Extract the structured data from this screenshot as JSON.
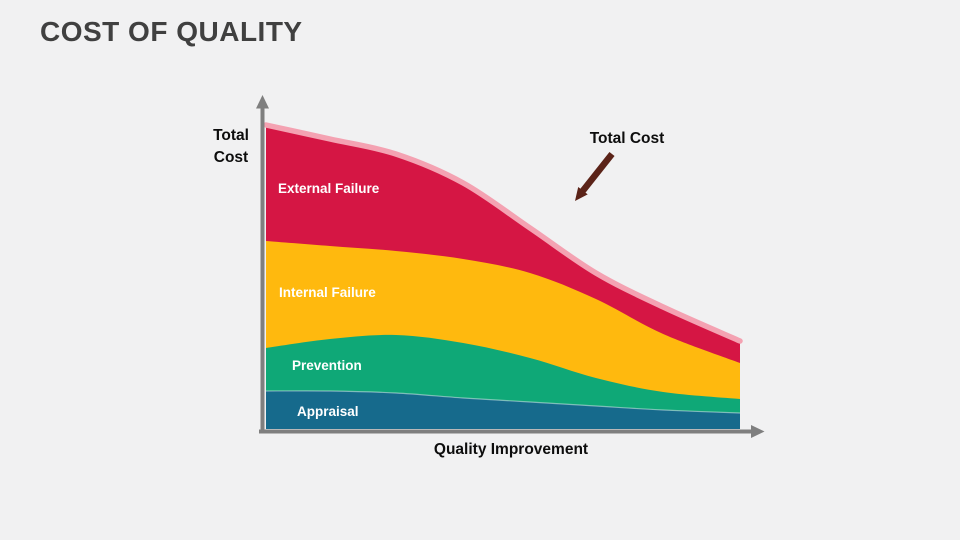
{
  "slide": {
    "title": "COST OF QUALITY",
    "background_color": "#F1F1F2",
    "title_color": "#404040"
  },
  "chart": {
    "y_axis_label_lines": [
      "Total",
      "Cost"
    ],
    "x_axis_label": "Quality Improvement",
    "axis_color": "#7F7F7F",
    "annotation": {
      "label": "Total Cost",
      "arrow_color": "#5B2318"
    }
  },
  "chart_data": {
    "type": "area",
    "stacked": true,
    "title": "Cost of Quality",
    "xlabel": "Quality Improvement",
    "ylabel": "Total Cost",
    "x_axis_note": "no numeric ticks; x represents increasing quality improvement, normalized 0 to 1",
    "y_axis_note": "no numeric ticks; values are relative cost units, plot scaled to y range 0-320",
    "x": [
      0,
      0.135,
      0.274,
      0.416,
      0.557,
      0.696,
      0.838,
      1.0
    ],
    "series": [
      {
        "name": "Appraisal",
        "color": "#166A8C",
        "values": [
          38,
          38,
          36,
          31,
          27,
          23,
          19,
          16
        ]
      },
      {
        "name": "Prevention",
        "color": "#0FA877",
        "values": [
          43,
          52,
          58,
          55,
          44,
          28,
          18,
          14
        ]
      },
      {
        "name": "Internal Failure",
        "color": "#FFB90E",
        "values": [
          107,
          93,
          84,
          84,
          85,
          79,
          58,
          36
        ]
      },
      {
        "name": "External Failure",
        "color": "#D51644",
        "values": [
          116,
          107,
          97,
          76,
          45,
          26,
          27,
          22
        ]
      }
    ],
    "total_curve": {
      "name": "Total Cost",
      "color": "#F4A2B2",
      "width": 5.5
    },
    "totals": [
      304,
      290,
      275,
      246,
      201,
      156,
      122,
      88
    ],
    "ylim": [
      0,
      320
    ],
    "grid": false,
    "legend": "labels drawn inside bands; total-cost curve annotated with arrow"
  }
}
